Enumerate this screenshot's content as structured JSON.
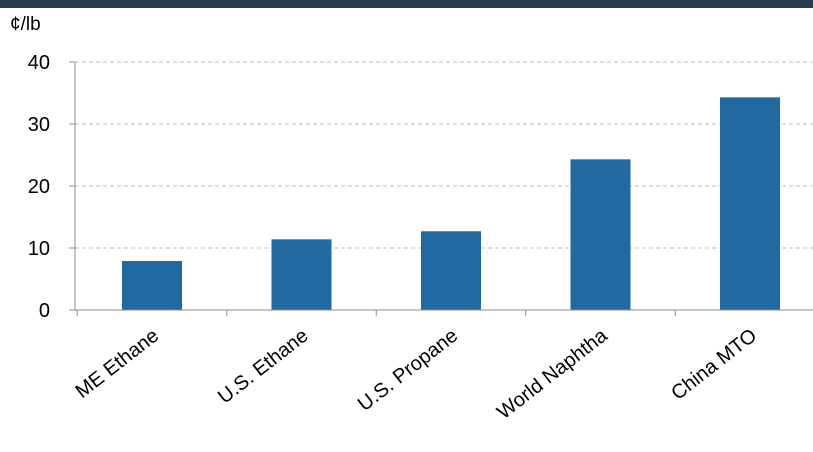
{
  "chart_data": {
    "type": "bar",
    "title": "",
    "ylabel": "¢/lb",
    "xlabel": "",
    "categories": [
      "ME Ethane",
      "U.S. Ethane",
      "U.S. Propane",
      "World Naphtha",
      "China MTO"
    ],
    "values": [
      7.9,
      11.4,
      12.7,
      24.3,
      34.3
    ],
    "ylim": [
      0,
      40
    ],
    "yticks": [
      0,
      10,
      20,
      30,
      40
    ],
    "grid": true,
    "legend": "none"
  },
  "colors": {
    "bar": "#2169a0",
    "grid": "#bfbfbf",
    "axis": "#8c8c8c",
    "header": "#2b3c4e"
  }
}
